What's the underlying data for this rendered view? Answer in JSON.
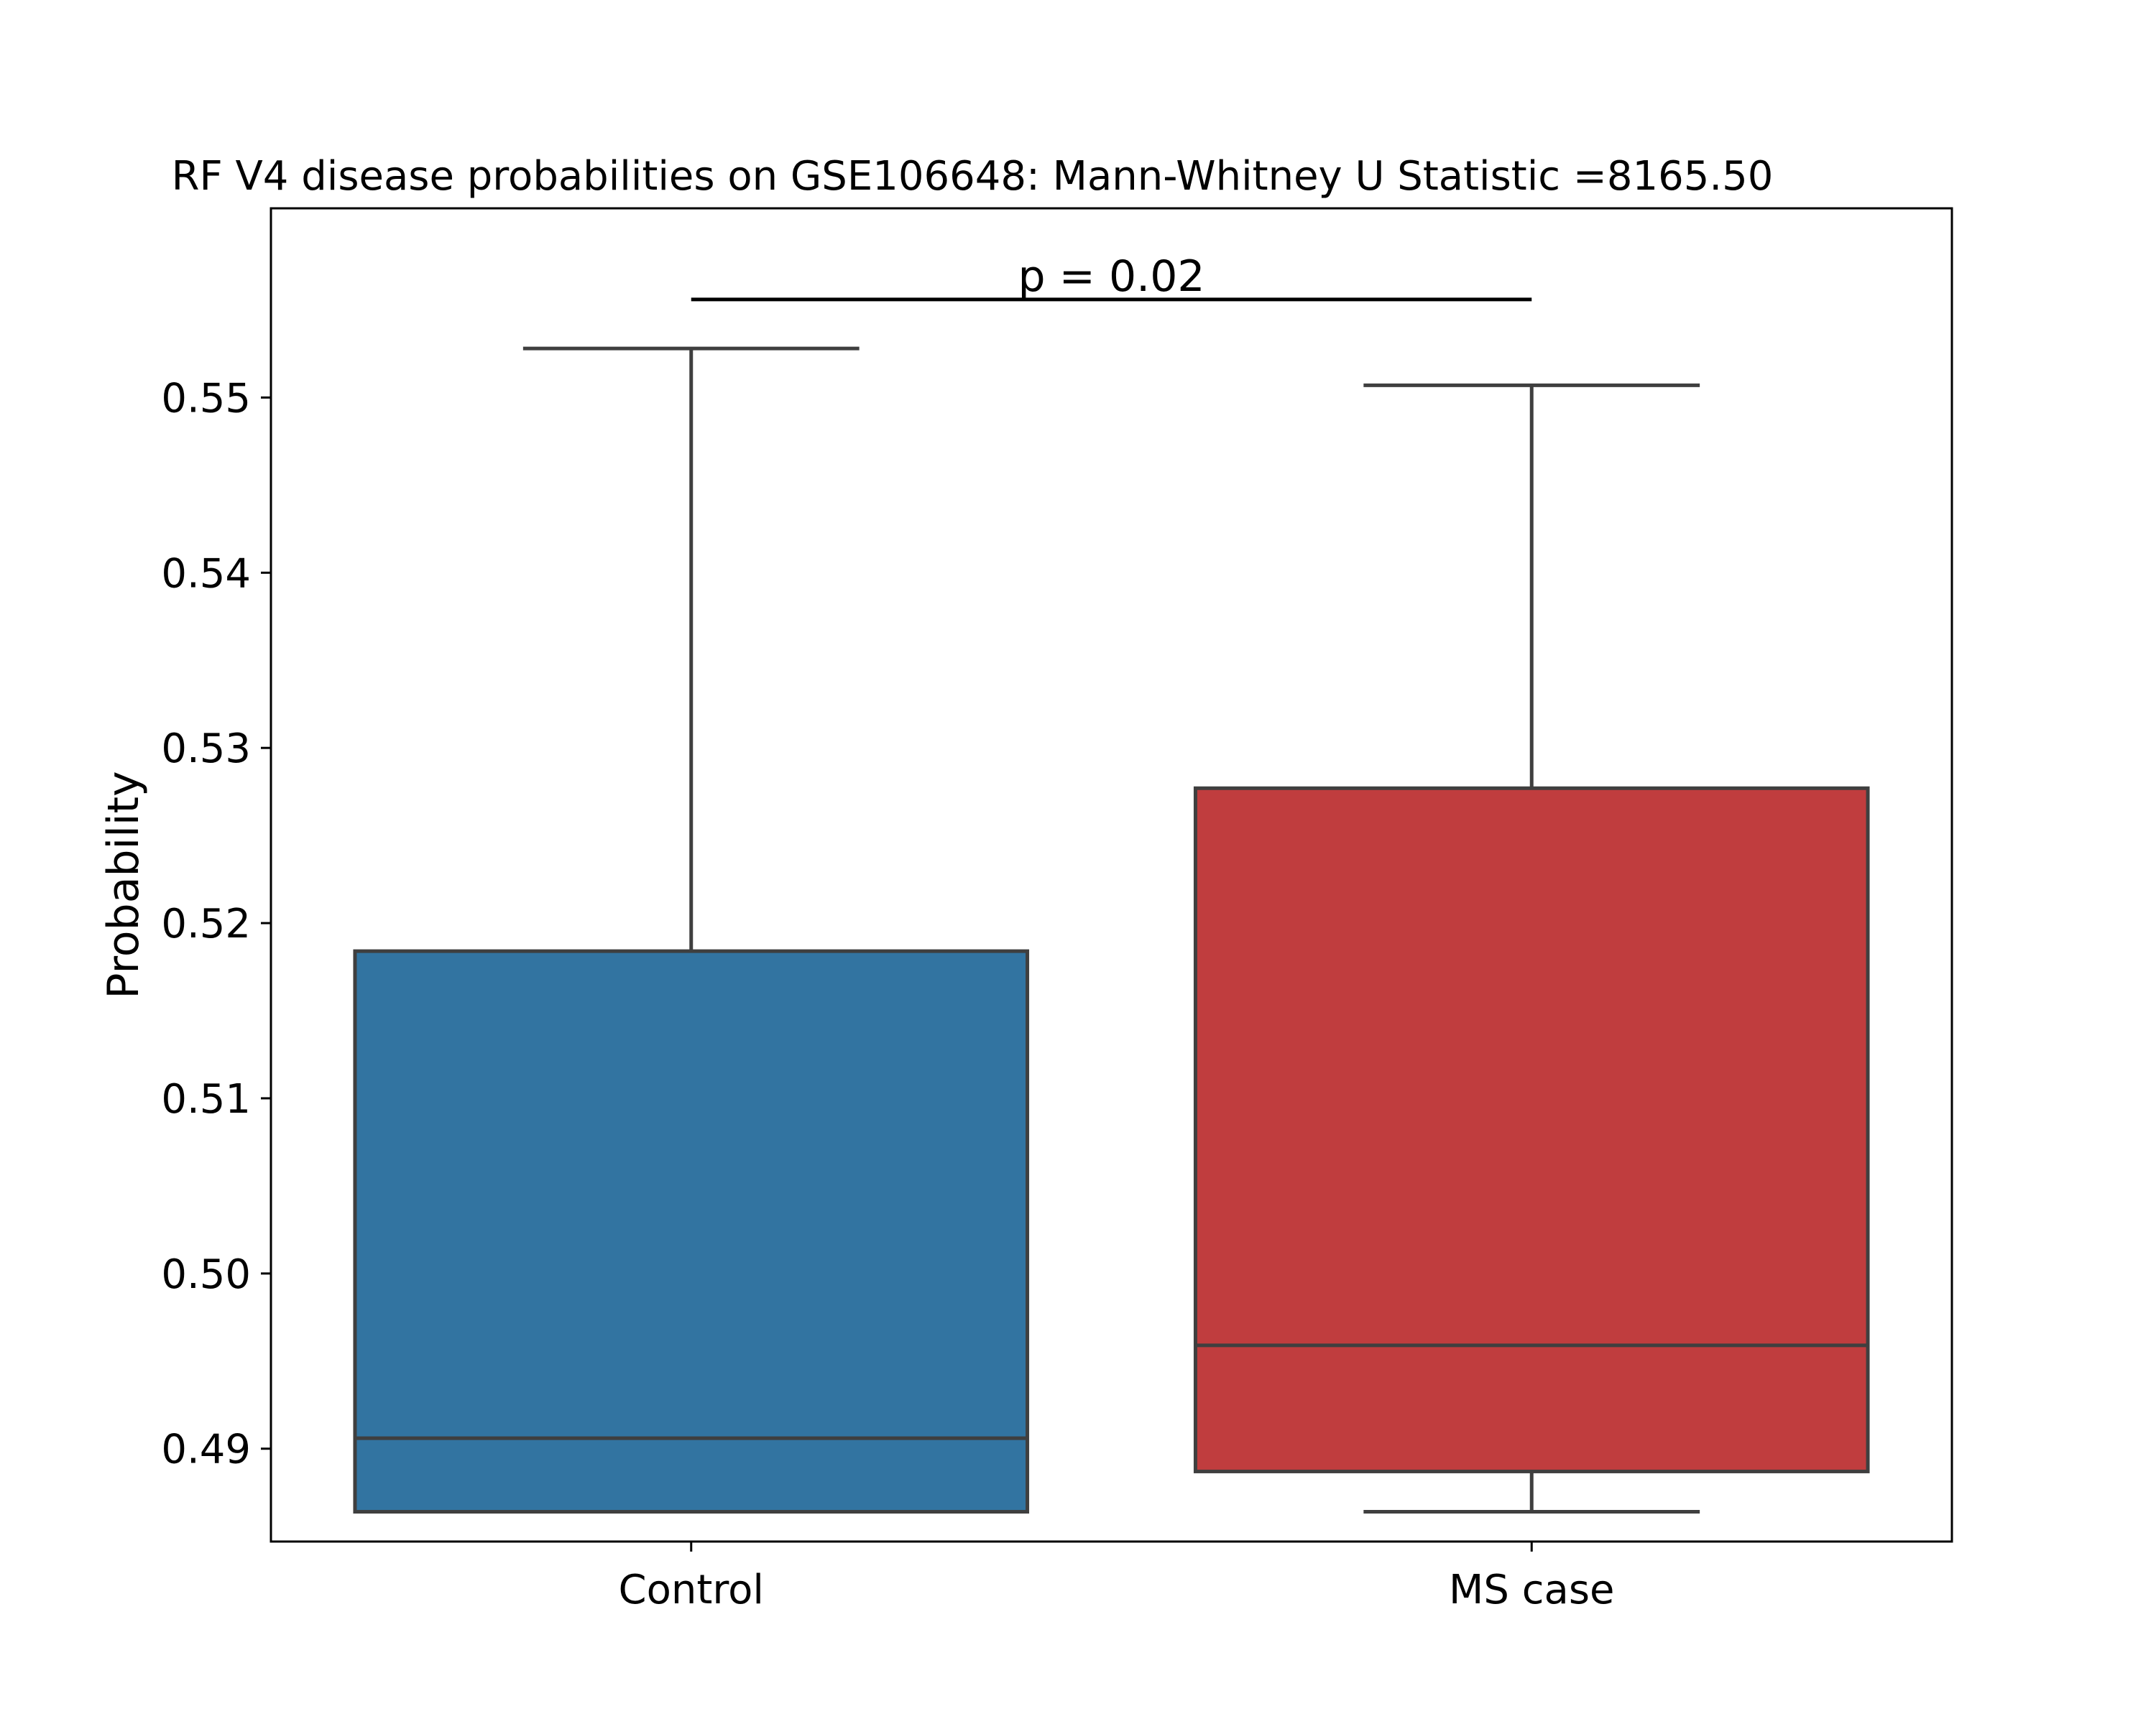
{
  "chart_data": {
    "type": "box",
    "title": "RF V4 disease probabilities on GSE106648: Mann-Whitney U Statistic =8165.50",
    "ylabel": "Probability",
    "xlabel": "",
    "ylim": [
      0.4847,
      0.5608
    ],
    "yticks": [
      0.49,
      0.5,
      0.51,
      0.52,
      0.53,
      0.54,
      0.55
    ],
    "ytick_labels": [
      "0.49",
      "0.50",
      "0.51",
      "0.52",
      "0.53",
      "0.54",
      "0.55"
    ],
    "grid": false,
    "annotation": {
      "text": "p = 0.02",
      "y": 0.5556,
      "from": "Control",
      "to": "MS case"
    },
    "series": [
      {
        "category": "Control",
        "color": "#3274a1",
        "whisker_low": 0.4864,
        "q1": 0.4864,
        "median": 0.4906,
        "q3": 0.5184,
        "whisker_high": 0.5528
      },
      {
        "category": "MS case",
        "color": "#c03d3e",
        "whisker_low": 0.4864,
        "q1": 0.4887,
        "median": 0.4959,
        "q3": 0.5277,
        "whisker_high": 0.5507
      }
    ]
  }
}
